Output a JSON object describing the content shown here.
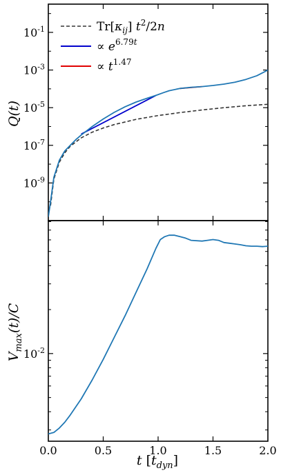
{
  "chart_data": [
    {
      "type": "line",
      "ylabel": "Q(t)",
      "yscale": "log",
      "ylim_log10": [
        -11.0,
        0.5
      ],
      "xlim": [
        0.0,
        2.0
      ],
      "ytick_labels": [
        "10^-1",
        "10^-3",
        "10^-5",
        "10^-7",
        "10^-9"
      ],
      "ytick_values_log10": [
        -1,
        -3,
        -5,
        -7,
        -9
      ],
      "legend_position": "top-left",
      "series": [
        {
          "name": "Tr[κij] t²/2n",
          "style": "dashed",
          "color": "#333333",
          "x": [
            0.02,
            0.05,
            0.1,
            0.15,
            0.2,
            0.3,
            0.4,
            0.5,
            0.6,
            0.8,
            1.0,
            1.2,
            1.4,
            1.6,
            1.8,
            2.0
          ],
          "y_log10": [
            -10.2,
            -8.8,
            -7.9,
            -7.4,
            -7.05,
            -6.6,
            -6.3,
            -6.08,
            -5.9,
            -5.62,
            -5.42,
            -5.26,
            -5.12,
            -5.0,
            -4.9,
            -4.82
          ]
        },
        {
          "name": "∝ e^6.79t",
          "style": "solid",
          "color": "#0000cc",
          "x": [
            0.3,
            0.98
          ],
          "y_log10": [
            -6.4,
            -4.35
          ]
        },
        {
          "name": "∝ t^1.47",
          "style": "solid",
          "color": "#e00000",
          "x": [
            1.2,
            1.4
          ],
          "y_log10": [
            -3.98,
            -3.88
          ]
        },
        {
          "name": "",
          "style": "solid",
          "color": "#1f77b4",
          "x": [
            0.0,
            0.02,
            0.05,
            0.1,
            0.15,
            0.2,
            0.25,
            0.3,
            0.4,
            0.5,
            0.6,
            0.7,
            0.8,
            0.9,
            0.98,
            1.05,
            1.1,
            1.2,
            1.3,
            1.4,
            1.5,
            1.6,
            1.7,
            1.8,
            1.9,
            1.95,
            2.0
          ],
          "y_log10": [
            -10.8,
            -10.0,
            -8.7,
            -7.8,
            -7.3,
            -7.0,
            -6.7,
            -6.45,
            -6.0,
            -5.6,
            -5.25,
            -4.95,
            -4.7,
            -4.5,
            -4.35,
            -4.2,
            -4.1,
            -3.98,
            -3.92,
            -3.88,
            -3.82,
            -3.75,
            -3.65,
            -3.5,
            -3.3,
            -3.15,
            -3.0
          ]
        }
      ]
    },
    {
      "type": "line",
      "ylabel": "Vmax(t)/C",
      "xlabel": "t [tdyn]",
      "yscale": "log",
      "ylim_log10": [
        -2.6,
        -1.09
      ],
      "xlim": [
        0.0,
        2.0
      ],
      "ytick_labels": [
        "10^-2"
      ],
      "ytick_values_log10": [
        -2
      ],
      "xtick_labels": [
        "0.0",
        "0.5",
        "1.0",
        "1.5",
        "2.0"
      ],
      "xtick_values": [
        0.0,
        0.5,
        1.0,
        1.5,
        2.0
      ],
      "series": [
        {
          "name": "",
          "color": "#1f77b4",
          "x": [
            0.0,
            0.05,
            0.1,
            0.15,
            0.2,
            0.3,
            0.4,
            0.5,
            0.6,
            0.7,
            0.8,
            0.9,
            0.98,
            1.02,
            1.06,
            1.1,
            1.15,
            1.2,
            1.25,
            1.3,
            1.4,
            1.45,
            1.5,
            1.55,
            1.6,
            1.65,
            1.7,
            1.75,
            1.8,
            1.85,
            1.9,
            1.95,
            2.0
          ],
          "y_log10": [
            -2.55,
            -2.54,
            -2.51,
            -2.47,
            -2.42,
            -2.31,
            -2.18,
            -2.04,
            -1.89,
            -1.74,
            -1.58,
            -1.42,
            -1.28,
            -1.22,
            -1.2,
            -1.19,
            -1.19,
            -1.2,
            -1.21,
            -1.225,
            -1.23,
            -1.225,
            -1.22,
            -1.225,
            -1.24,
            -1.245,
            -1.25,
            -1.255,
            -1.262,
            -1.265,
            -1.265,
            -1.268,
            -1.265
          ]
        }
      ]
    }
  ]
}
